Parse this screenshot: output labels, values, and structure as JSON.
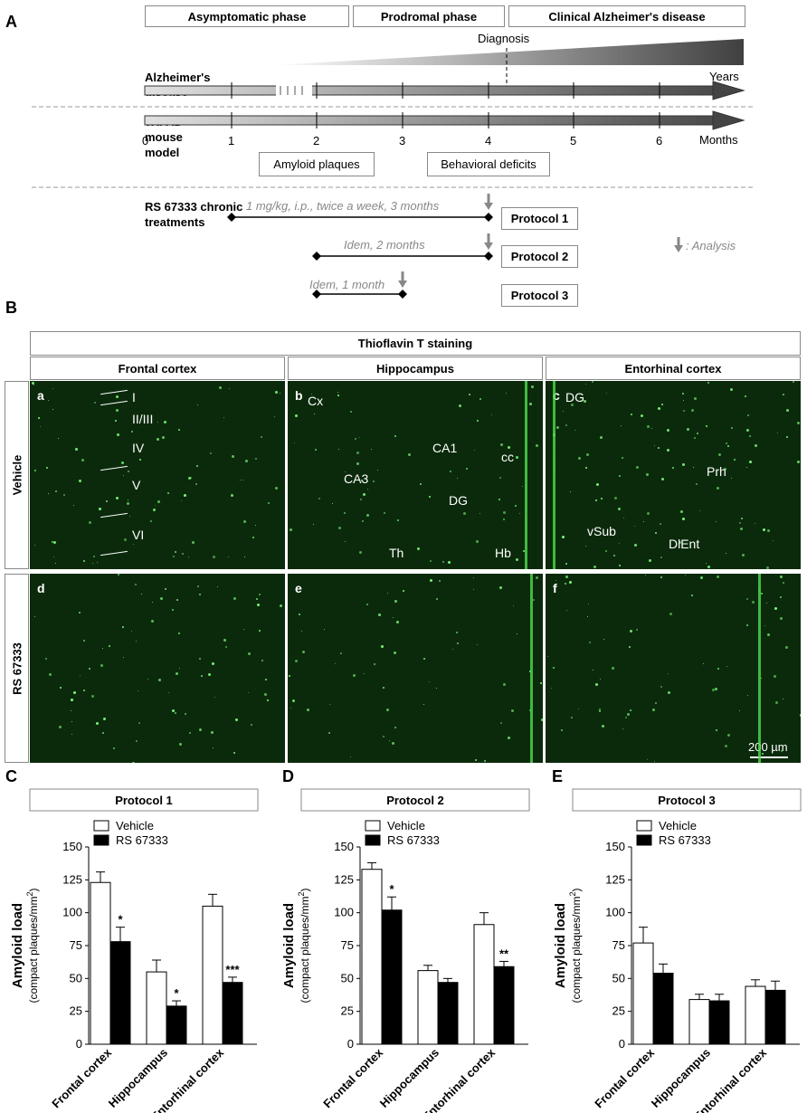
{
  "panel_A": {
    "label": "A",
    "phases": [
      "Asymptomatic phase",
      "Prodromal phase",
      "Clinical Alzheimer's disease"
    ],
    "diagnosis": "Diagnosis",
    "ad_label": "Alzheimer's disease",
    "years": "Years",
    "mouse_label": "5XFAD mouse model",
    "months": "Months",
    "month_ticks": [
      "0",
      "1",
      "2",
      "3",
      "4",
      "5",
      "6"
    ],
    "milestones": [
      "Amyloid plaques",
      "Behavioral deficits"
    ],
    "treatment_label": "RS 67333 chronic treatments",
    "regimens": [
      "1 mg/kg, i.p., twice a week, 3 months",
      "Idem, 2 months",
      "Idem, 1 month"
    ],
    "protocols": [
      "Protocol 1",
      "Protocol 2",
      "Protocol 3"
    ],
    "analysis_legend": ": Analysis",
    "colors": {
      "arrow_light": "#d9d9d9",
      "arrow_dark": "#555555",
      "annotation": "#888888"
    }
  },
  "panel_B": {
    "label": "B",
    "stain": "Thioflavin T staining",
    "regions": [
      "Frontal cortex",
      "Hippocampus",
      "Entorhinal cortex"
    ],
    "conditions": [
      "Vehicle",
      "RS 67333"
    ],
    "image_letters": [
      "a",
      "b",
      "c",
      "d",
      "e",
      "f"
    ],
    "layers": [
      "I",
      "II/III",
      "IV",
      "V",
      "VI"
    ],
    "hippo_labels": [
      "Cx",
      "CA1",
      "cc",
      "CA3",
      "DG",
      "Th",
      "Hb"
    ],
    "ent_labels": [
      "DG",
      "Prh",
      "vSub",
      "DlEnt"
    ],
    "scale_bar": "200 µm",
    "colors": {
      "tissue_bg": "#0b2a0b",
      "plaque": "#7dff7d"
    }
  },
  "bar_panels": [
    {
      "label": "C",
      "title": "Protocol 1"
    },
    {
      "label": "D",
      "title": "Protocol 2"
    },
    {
      "label": "E",
      "title": "Protocol 3"
    }
  ],
  "chart_data": [
    {
      "type": "bar",
      "title": "Protocol 1",
      "categories": [
        "Frontal cortex",
        "Hippocampus",
        "Entorhinal cortex"
      ],
      "ylabel": "Amyloid load",
      "ysublabel": "(compact plaques/mm",
      "ysup": "2",
      "ysubclose": ")",
      "ylim": [
        0,
        150
      ],
      "yticks": [
        "0",
        "25",
        "50",
        "75",
        "100",
        "125",
        "150"
      ],
      "series": [
        {
          "name": "Vehicle",
          "values": [
            123,
            55,
            105
          ],
          "errors": [
            8,
            9,
            9
          ],
          "color": "#ffffff"
        },
        {
          "name": "RS 67333",
          "values": [
            78,
            29,
            47
          ],
          "errors": [
            11,
            4,
            4
          ],
          "color": "#000000"
        }
      ],
      "significance": [
        "*",
        "*",
        "***"
      ]
    },
    {
      "type": "bar",
      "title": "Protocol 2",
      "categories": [
        "Frontal cortex",
        "Hippocampus",
        "Entorhinal cortex"
      ],
      "ylabel": "Amyloid load",
      "ysublabel": "(compact plaques/mm",
      "ysup": "2",
      "ysubclose": ")",
      "ylim": [
        0,
        150
      ],
      "yticks": [
        "0",
        "25",
        "50",
        "75",
        "100",
        "125",
        "150"
      ],
      "series": [
        {
          "name": "Vehicle",
          "values": [
            133,
            56,
            91
          ],
          "errors": [
            5,
            4,
            9
          ],
          "color": "#ffffff"
        },
        {
          "name": "RS 67333",
          "values": [
            102,
            47,
            59
          ],
          "errors": [
            10,
            3,
            4
          ],
          "color": "#000000"
        }
      ],
      "significance": [
        "*",
        "",
        "**"
      ]
    },
    {
      "type": "bar",
      "title": "Protocol 3",
      "categories": [
        "Frontal cortex",
        "Hippocampus",
        "Entorhinal cortex"
      ],
      "ylabel": "Amyloid load",
      "ysublabel": "(compact plaques/mm",
      "ysup": "2",
      "ysubclose": ")",
      "ylim": [
        0,
        150
      ],
      "yticks": [
        "0",
        "25",
        "50",
        "75",
        "100",
        "125",
        "150"
      ],
      "series": [
        {
          "name": "Vehicle",
          "values": [
            77,
            34,
            44
          ],
          "errors": [
            12,
            4,
            5
          ],
          "color": "#ffffff"
        },
        {
          "name": "RS 67333",
          "values": [
            54,
            33,
            41
          ],
          "errors": [
            7,
            5,
            7
          ],
          "color": "#000000"
        }
      ],
      "significance": [
        "",
        "",
        ""
      ]
    }
  ]
}
